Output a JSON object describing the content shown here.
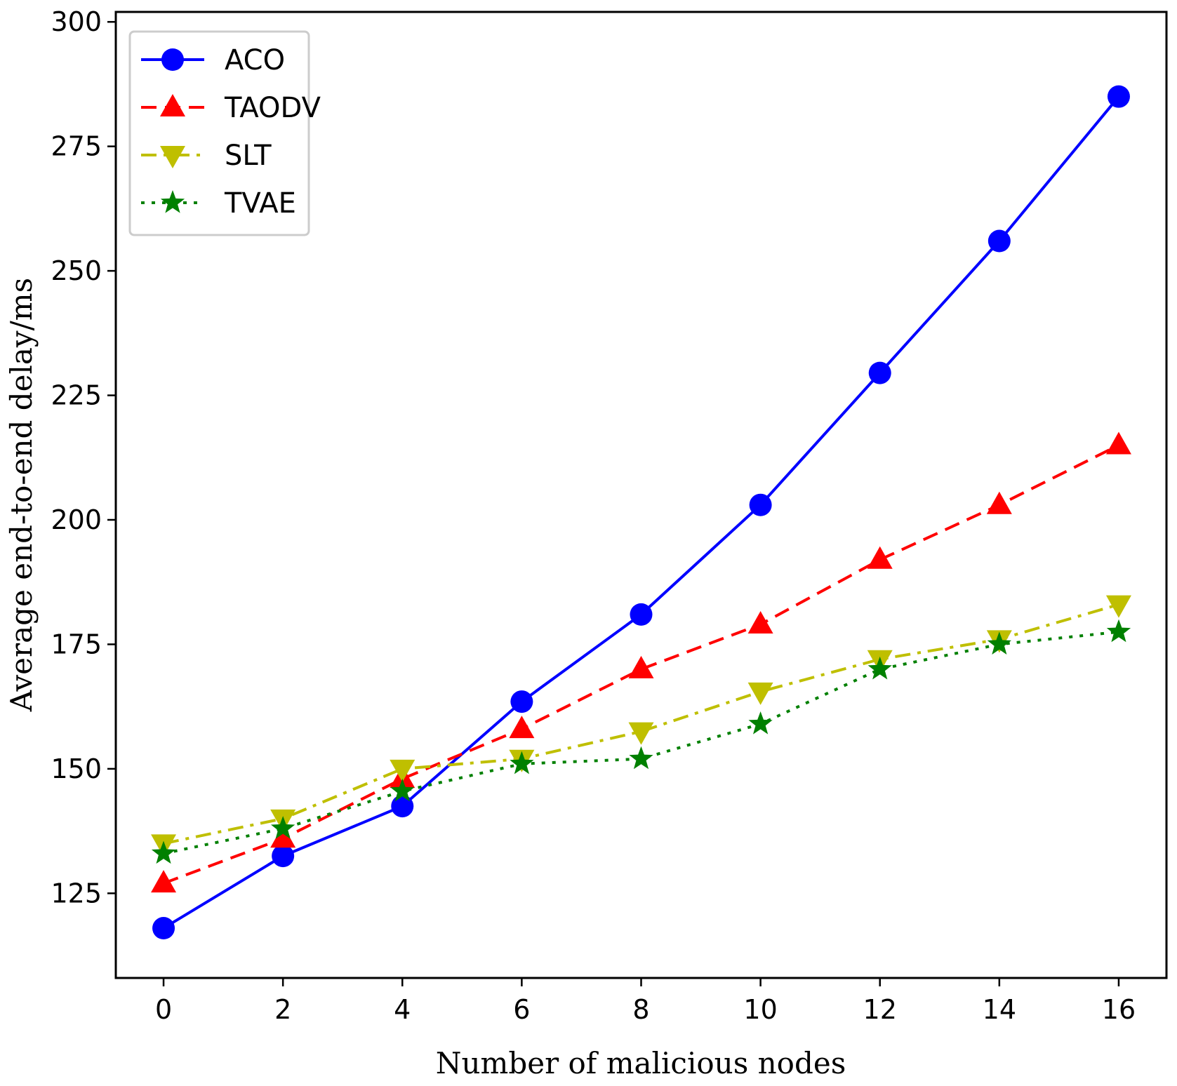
{
  "chart_data": {
    "type": "line",
    "title": "",
    "xlabel": "Number of malicious nodes",
    "ylabel": "Average end-to-end delay/ms",
    "x": [
      0,
      2,
      4,
      6,
      8,
      10,
      12,
      14,
      16
    ],
    "xlim": [
      -0.8,
      16.8
    ],
    "ylim": [
      108,
      302
    ],
    "xticks": [
      0,
      2,
      4,
      6,
      8,
      10,
      12,
      14,
      16
    ],
    "yticks": [
      125,
      150,
      175,
      200,
      225,
      250,
      275,
      300
    ],
    "grid": false,
    "legend_position": "top-left",
    "series": [
      {
        "name": "ACO",
        "color": "#0000ff",
        "marker": "circle",
        "line_style": "solid",
        "values": [
          118,
          132.5,
          142.5,
          163.5,
          181,
          203,
          229.5,
          256,
          285
        ]
      },
      {
        "name": "TAODV",
        "color": "#ff0000",
        "marker": "triangle-up",
        "line_style": "dashed",
        "values": [
          127,
          136,
          148,
          158,
          170,
          179,
          192,
          203,
          215
        ]
      },
      {
        "name": "SLT",
        "color": "#bfbf00",
        "marker": "triangle-down",
        "line_style": "dashdot",
        "values": [
          135,
          140,
          150,
          152,
          157.5,
          165.5,
          172,
          176,
          183
        ]
      },
      {
        "name": "TVAE",
        "color": "#008000",
        "marker": "star",
        "line_style": "dotted",
        "values": [
          133,
          138,
          145.5,
          151,
          152,
          159,
          170,
          175,
          177.5
        ]
      }
    ]
  }
}
